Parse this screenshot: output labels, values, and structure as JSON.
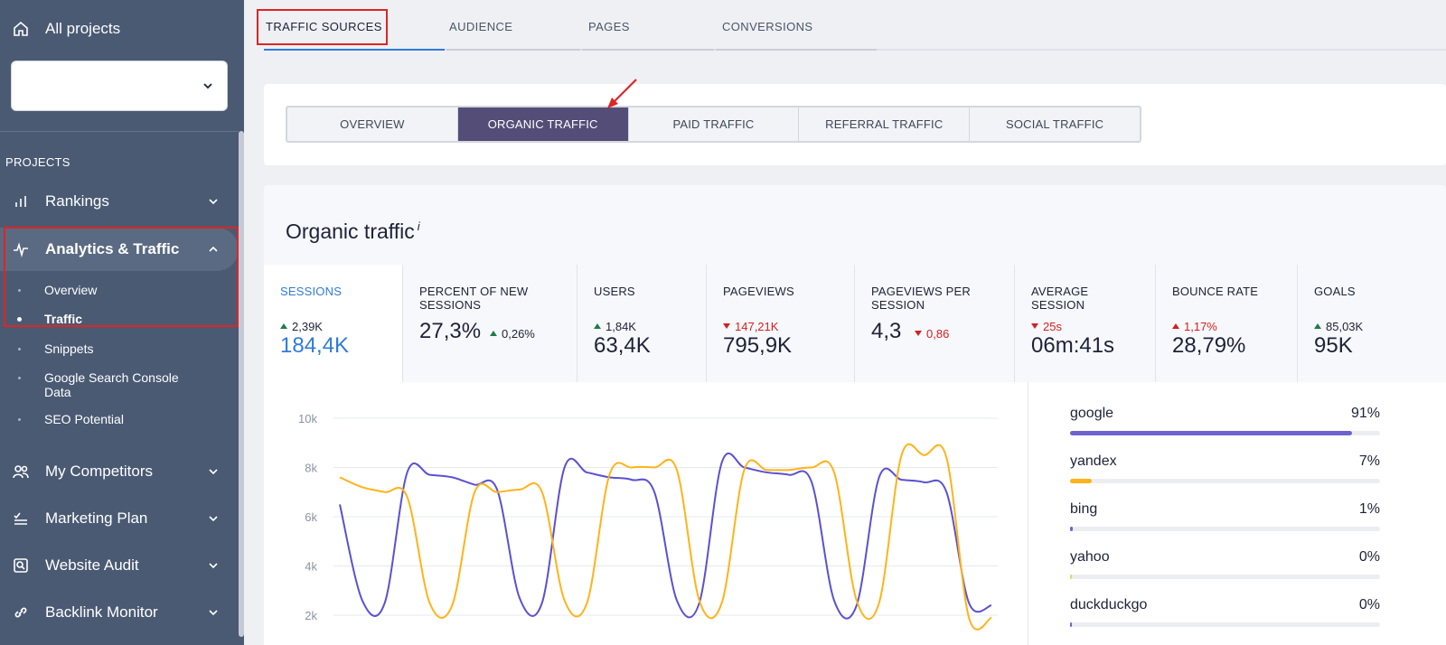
{
  "sidebar": {
    "all_projects": "All projects",
    "project_select_value": "",
    "section_label": "PROJECTS",
    "items": [
      {
        "label": "Rankings"
      },
      {
        "label": "Analytics & Traffic"
      },
      {
        "label": "My Competitors"
      },
      {
        "label": "Marketing Plan"
      },
      {
        "label": "Website Audit"
      },
      {
        "label": "Backlink Monitor"
      }
    ],
    "subitems": [
      {
        "label": "Overview"
      },
      {
        "label": "Traffic"
      },
      {
        "label": "Snippets"
      },
      {
        "label": "Google Search Console Data"
      },
      {
        "label": "SEO Potential"
      }
    ]
  },
  "top_tabs": [
    {
      "label": "TRAFFIC SOURCES"
    },
    {
      "label": "AUDIENCE"
    },
    {
      "label": "PAGES"
    },
    {
      "label": "CONVERSIONS"
    }
  ],
  "sub_tabs": [
    {
      "label": "OVERVIEW"
    },
    {
      "label": "ORGANIC TRAFFIC"
    },
    {
      "label": "PAID TRAFFIC"
    },
    {
      "label": "REFERRAL TRAFFIC"
    },
    {
      "label": "SOCIAL TRAFFIC"
    }
  ],
  "content": {
    "title": "Organic traffic",
    "title_info": "i"
  },
  "metrics": [
    {
      "label": "SESSIONS",
      "delta": "2,39K",
      "value": "184,4K"
    },
    {
      "label": "PERCENT OF NEW SESSIONS",
      "delta": "0,26%",
      "value": "27,3%"
    },
    {
      "label": "USERS",
      "delta": "1,84K",
      "value": "63,4K"
    },
    {
      "label": "PAGEVIEWS",
      "delta": "147,21K",
      "value": "795,9K"
    },
    {
      "label": "PAGEVIEWS PER SESSION",
      "delta": "0,86",
      "value": "4,3"
    },
    {
      "label": "AVERAGE SESSION",
      "delta": "25s",
      "value": "06m:41s"
    },
    {
      "label": "BOUNCE RATE",
      "delta": "1,17%",
      "value": "28,79%"
    },
    {
      "label": "GOALS",
      "delta": "85,03K",
      "value": "95K"
    }
  ],
  "chart_data": {
    "type": "line",
    "ylim": [
      2000,
      10000
    ],
    "yticks": [
      "10k",
      "8k",
      "6k",
      "4k",
      "2k"
    ],
    "ytick_values": [
      10000,
      8000,
      6000,
      4000,
      2000
    ],
    "colors": {
      "purple": "#5b51d0",
      "orange": "#ffb31a"
    },
    "series": [
      {
        "color": "#5b51d0",
        "values": [
          6500,
          2600,
          2500,
          7800,
          7700,
          7600,
          7300,
          7100,
          2700,
          2500,
          8000,
          7800,
          7600,
          7500,
          7000,
          2600,
          2500,
          8200,
          8000,
          7800,
          7700,
          7400,
          2600,
          2400,
          7600,
          7500,
          7400,
          7000,
          2500,
          2400
        ]
      },
      {
        "color": "#ffb31a",
        "values": [
          7600,
          7200,
          7000,
          6800,
          2500,
          2400,
          7000,
          7000,
          7100,
          7000,
          2600,
          2500,
          7700,
          8000,
          8000,
          7900,
          2600,
          2500,
          7900,
          7900,
          7900,
          8000,
          7800,
          2600,
          2500,
          8500,
          8500,
          8400,
          1900,
          1900
        ]
      }
    ]
  },
  "sources": [
    {
      "name": "google",
      "pct": "91%",
      "value": 91,
      "color": "#6d63cf"
    },
    {
      "name": "yandex",
      "pct": "7%",
      "value": 7,
      "color": "#ffb31a"
    },
    {
      "name": "bing",
      "pct": "1%",
      "value": 1,
      "color": "#6d63cf"
    },
    {
      "name": "yahoo",
      "pct": "0%",
      "value": 0,
      "color": "#e8d36a"
    },
    {
      "name": "duckduckgo",
      "pct": "0%",
      "value": 0,
      "color": "#6d63cf"
    }
  ]
}
